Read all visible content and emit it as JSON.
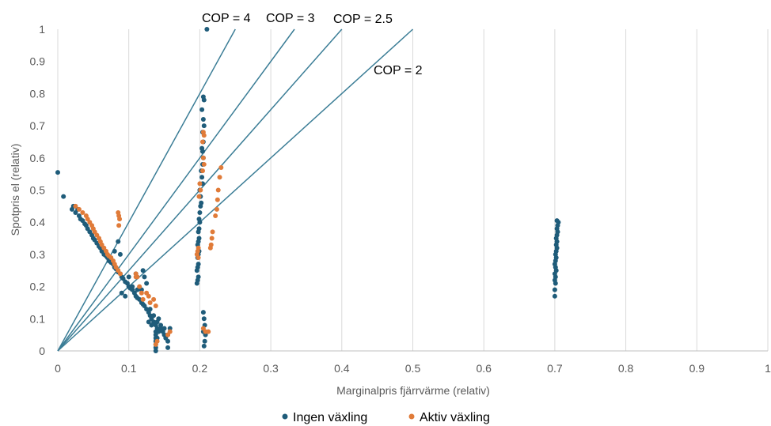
{
  "chart_data": {
    "type": "scatter",
    "xlabel": "Marginalpris fjärrvärme (relativ)",
    "ylabel": "Spotpris el (relativ)",
    "xlim": [
      0,
      1
    ],
    "ylim": [
      0,
      1
    ],
    "x_ticks": [
      "0",
      "0.1",
      "0.2",
      "0.3",
      "0.4",
      "0.5",
      "0.6",
      "0.7",
      "0.8",
      "0.9",
      "1"
    ],
    "y_ticks": [
      "0",
      "0.1",
      "0.2",
      "0.3",
      "0.4",
      "0.5",
      "0.6",
      "0.7",
      "0.8",
      "0.9",
      "1"
    ],
    "grid": "vertical",
    "legend_position": "bottom",
    "colors": {
      "ingen": "#1F5C7A",
      "aktiv": "#E07B39",
      "lines": "#3B7D96",
      "grid": "#D9D9D9"
    },
    "cop_lines": [
      {
        "label": "COP = 4",
        "cop": 4
      },
      {
        "label": "COP = 3",
        "cop": 3
      },
      {
        "label": "COP = 2.5",
        "cop": 2.5
      },
      {
        "label": "COP = 2",
        "cop": 2
      }
    ],
    "series": [
      {
        "name": "Ingen växling",
        "points": [
          [
            0.0,
            0.555
          ],
          [
            0.008,
            0.48
          ],
          [
            0.02,
            0.44
          ],
          [
            0.022,
            0.45
          ],
          [
            0.025,
            0.43
          ],
          [
            0.028,
            0.44
          ],
          [
            0.03,
            0.42
          ],
          [
            0.032,
            0.41
          ],
          [
            0.035,
            0.405
          ],
          [
            0.038,
            0.395
          ],
          [
            0.04,
            0.39
          ],
          [
            0.042,
            0.38
          ],
          [
            0.045,
            0.37
          ],
          [
            0.048,
            0.36
          ],
          [
            0.05,
            0.35
          ],
          [
            0.052,
            0.345
          ],
          [
            0.055,
            0.335
          ],
          [
            0.058,
            0.325
          ],
          [
            0.06,
            0.32
          ],
          [
            0.062,
            0.31
          ],
          [
            0.065,
            0.3
          ],
          [
            0.068,
            0.295
          ],
          [
            0.07,
            0.29
          ],
          [
            0.072,
            0.28
          ],
          [
            0.075,
            0.275
          ],
          [
            0.078,
            0.27
          ],
          [
            0.08,
            0.26
          ],
          [
            0.082,
            0.255
          ],
          [
            0.085,
            0.245
          ],
          [
            0.088,
            0.24
          ],
          [
            0.09,
            0.23
          ],
          [
            0.092,
            0.225
          ],
          [
            0.095,
            0.215
          ],
          [
            0.098,
            0.21
          ],
          [
            0.1,
            0.2
          ],
          [
            0.102,
            0.195
          ],
          [
            0.105,
            0.19
          ],
          [
            0.108,
            0.18
          ],
          [
            0.11,
            0.17
          ],
          [
            0.112,
            0.165
          ],
          [
            0.115,
            0.16
          ],
          [
            0.118,
            0.15
          ],
          [
            0.12,
            0.145
          ],
          [
            0.122,
            0.14
          ],
          [
            0.125,
            0.13
          ],
          [
            0.128,
            0.12
          ],
          [
            0.13,
            0.11
          ],
          [
            0.132,
            0.1
          ],
          [
            0.135,
            0.09
          ],
          [
            0.138,
            0.08
          ],
          [
            0.14,
            0.07
          ],
          [
            0.142,
            0.06
          ],
          [
            0.145,
            0.07
          ],
          [
            0.148,
            0.06
          ],
          [
            0.15,
            0.05
          ],
          [
            0.152,
            0.04
          ],
          [
            0.155,
            0.05
          ],
          [
            0.158,
            0.07
          ],
          [
            0.138,
            0.06
          ],
          [
            0.138,
            0.05
          ],
          [
            0.138,
            0.04
          ],
          [
            0.138,
            0.03
          ],
          [
            0.138,
            0.02
          ],
          [
            0.138,
            0.01
          ],
          [
            0.138,
            0.0
          ],
          [
            0.14,
            0.09
          ],
          [
            0.142,
            0.1
          ],
          [
            0.135,
            0.11
          ],
          [
            0.13,
            0.13
          ],
          [
            0.145,
            0.08
          ],
          [
            0.15,
            0.07
          ],
          [
            0.155,
            0.03
          ],
          [
            0.155,
            0.01
          ],
          [
            0.14,
            0.04
          ],
          [
            0.085,
            0.34
          ],
          [
            0.088,
            0.3
          ],
          [
            0.08,
            0.31
          ],
          [
            0.09,
            0.18
          ],
          [
            0.095,
            0.17
          ],
          [
            0.105,
            0.2
          ],
          [
            0.11,
            0.24
          ],
          [
            0.12,
            0.25
          ],
          [
            0.122,
            0.23
          ],
          [
            0.125,
            0.21
          ],
          [
            0.118,
            0.19
          ],
          [
            0.112,
            0.19
          ],
          [
            0.1,
            0.23
          ],
          [
            0.128,
            0.09
          ],
          [
            0.132,
            0.08
          ],
          [
            0.21,
            1.0
          ],
          [
            0.205,
            0.79
          ],
          [
            0.206,
            0.78
          ],
          [
            0.203,
            0.75
          ],
          [
            0.205,
            0.72
          ],
          [
            0.206,
            0.7
          ],
          [
            0.204,
            0.68
          ],
          [
            0.205,
            0.65
          ],
          [
            0.203,
            0.63
          ],
          [
            0.204,
            0.62
          ],
          [
            0.205,
            0.6
          ],
          [
            0.204,
            0.58
          ],
          [
            0.202,
            0.56
          ],
          [
            0.203,
            0.54
          ],
          [
            0.204,
            0.52
          ],
          [
            0.2,
            0.5
          ],
          [
            0.201,
            0.48
          ],
          [
            0.202,
            0.46
          ],
          [
            0.201,
            0.45
          ],
          [
            0.2,
            0.43
          ],
          [
            0.199,
            0.41
          ],
          [
            0.2,
            0.4
          ],
          [
            0.199,
            0.38
          ],
          [
            0.198,
            0.37
          ],
          [
            0.199,
            0.35
          ],
          [
            0.198,
            0.34
          ],
          [
            0.197,
            0.33
          ],
          [
            0.199,
            0.31
          ],
          [
            0.198,
            0.3
          ],
          [
            0.197,
            0.29
          ],
          [
            0.198,
            0.27
          ],
          [
            0.197,
            0.26
          ],
          [
            0.196,
            0.25
          ],
          [
            0.198,
            0.23
          ],
          [
            0.197,
            0.22
          ],
          [
            0.196,
            0.21
          ],
          [
            0.205,
            0.12
          ],
          [
            0.206,
            0.1
          ],
          [
            0.207,
            0.08
          ],
          [
            0.205,
            0.06
          ],
          [
            0.208,
            0.05
          ],
          [
            0.207,
            0.03
          ],
          [
            0.206,
            0.015
          ],
          [
            0.7,
            0.17
          ],
          [
            0.7,
            0.19
          ],
          [
            0.701,
            0.21
          ],
          [
            0.7,
            0.22
          ],
          [
            0.701,
            0.23
          ],
          [
            0.7,
            0.24
          ],
          [
            0.702,
            0.25
          ],
          [
            0.701,
            0.26
          ],
          [
            0.7,
            0.27
          ],
          [
            0.701,
            0.28
          ],
          [
            0.702,
            0.29
          ],
          [
            0.701,
            0.3
          ],
          [
            0.702,
            0.31
          ],
          [
            0.703,
            0.32
          ],
          [
            0.702,
            0.33
          ],
          [
            0.703,
            0.34
          ],
          [
            0.702,
            0.35
          ],
          [
            0.703,
            0.36
          ],
          [
            0.704,
            0.37
          ],
          [
            0.703,
            0.38
          ],
          [
            0.704,
            0.39
          ],
          [
            0.705,
            0.4
          ],
          [
            0.703,
            0.405
          ]
        ]
      },
      {
        "name": "Aktiv växling",
        "points": [
          [
            0.025,
            0.45
          ],
          [
            0.03,
            0.44
          ],
          [
            0.035,
            0.43
          ],
          [
            0.04,
            0.42
          ],
          [
            0.042,
            0.41
          ],
          [
            0.045,
            0.4
          ],
          [
            0.048,
            0.39
          ],
          [
            0.05,
            0.38
          ],
          [
            0.052,
            0.37
          ],
          [
            0.055,
            0.36
          ],
          [
            0.058,
            0.35
          ],
          [
            0.06,
            0.34
          ],
          [
            0.062,
            0.33
          ],
          [
            0.065,
            0.32
          ],
          [
            0.068,
            0.31
          ],
          [
            0.07,
            0.3
          ],
          [
            0.072,
            0.295
          ],
          [
            0.075,
            0.29
          ],
          [
            0.078,
            0.28
          ],
          [
            0.08,
            0.27
          ],
          [
            0.082,
            0.26
          ],
          [
            0.085,
            0.25
          ],
          [
            0.088,
            0.24
          ],
          [
            0.085,
            0.43
          ],
          [
            0.086,
            0.42
          ],
          [
            0.087,
            0.41
          ],
          [
            0.086,
            0.39
          ],
          [
            0.11,
            0.24
          ],
          [
            0.112,
            0.23
          ],
          [
            0.115,
            0.2
          ],
          [
            0.118,
            0.18
          ],
          [
            0.12,
            0.16
          ],
          [
            0.125,
            0.18
          ],
          [
            0.128,
            0.17
          ],
          [
            0.13,
            0.15
          ],
          [
            0.135,
            0.16
          ],
          [
            0.138,
            0.14
          ],
          [
            0.11,
            0.23
          ],
          [
            0.138,
            0.02
          ],
          [
            0.14,
            0.03
          ],
          [
            0.155,
            0.05
          ],
          [
            0.158,
            0.06
          ],
          [
            0.205,
            0.68
          ],
          [
            0.206,
            0.67
          ],
          [
            0.204,
            0.65
          ],
          [
            0.205,
            0.6
          ],
          [
            0.206,
            0.58
          ],
          [
            0.204,
            0.56
          ],
          [
            0.2,
            0.52
          ],
          [
            0.201,
            0.5
          ],
          [
            0.199,
            0.48
          ],
          [
            0.198,
            0.32
          ],
          [
            0.197,
            0.31
          ],
          [
            0.196,
            0.3
          ],
          [
            0.198,
            0.29
          ],
          [
            0.23,
            0.57
          ],
          [
            0.228,
            0.54
          ],
          [
            0.226,
            0.5
          ],
          [
            0.225,
            0.47
          ],
          [
            0.224,
            0.44
          ],
          [
            0.222,
            0.42
          ],
          [
            0.218,
            0.37
          ],
          [
            0.217,
            0.35
          ],
          [
            0.216,
            0.33
          ],
          [
            0.215,
            0.32
          ],
          [
            0.205,
            0.07
          ],
          [
            0.208,
            0.06
          ],
          [
            0.212,
            0.06
          ]
        ]
      }
    ]
  }
}
